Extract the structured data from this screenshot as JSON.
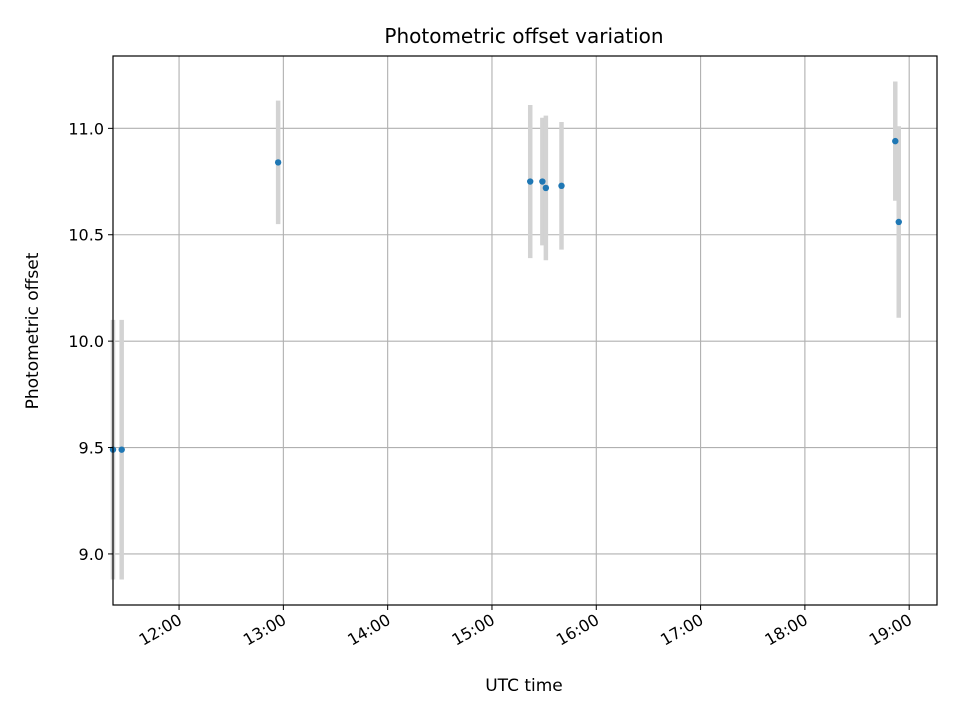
{
  "chart_data": {
    "type": "scatter",
    "title": "Photometric offset variation",
    "xlabel": "UTC time",
    "ylabel": "Photometric offset",
    "xlim": [
      "11:22",
      "19:16"
    ],
    "ylim": [
      8.76,
      11.34
    ],
    "x_ticks": [
      "12:00",
      "13:00",
      "14:00",
      "15:00",
      "16:00",
      "17:00",
      "18:00",
      "19:00"
    ],
    "y_ticks": [
      9.0,
      9.5,
      10.0,
      10.5,
      11.0
    ],
    "grid": true,
    "marker_color": "#1f77b4",
    "errorbar_color": "#d3d3d3",
    "points": [
      {
        "x": "11:22",
        "y": 9.49,
        "err": 0.61
      },
      {
        "x": "11:27",
        "y": 9.49,
        "err": 0.61
      },
      {
        "x": "12:57",
        "y": 10.84,
        "err": 0.29
      },
      {
        "x": "15:22",
        "y": 10.75,
        "err": 0.36
      },
      {
        "x": "15:29",
        "y": 10.75,
        "err": 0.3
      },
      {
        "x": "15:31",
        "y": 10.72,
        "err": 0.34
      },
      {
        "x": "15:40",
        "y": 10.73,
        "err": 0.3
      },
      {
        "x": "18:52",
        "y": 10.94,
        "err": 0.28
      },
      {
        "x": "18:54",
        "y": 10.56,
        "err": 0.45
      }
    ]
  }
}
